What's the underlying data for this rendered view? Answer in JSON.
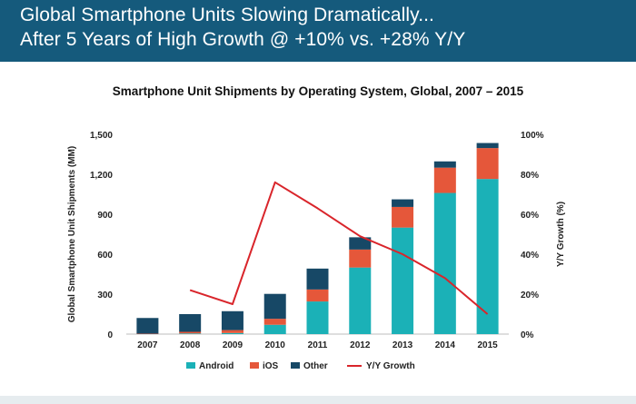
{
  "header": {
    "line1": "Global Smartphone Units Slowing Dramatically...",
    "line2": "After 5 Years of High Growth @ +10% vs. +28% Y/Y",
    "background": "#155a7c"
  },
  "chart_data": {
    "type": "bar",
    "stacked": true,
    "title": "Smartphone Unit Shipments by Operating System, Global, 2007 – 2015",
    "xlabel": "",
    "ylabel": "Global Smartphone Unit Shipments (MM)",
    "y2label": "Y/Y Growth (%)",
    "categories": [
      "2007",
      "2008",
      "2009",
      "2010",
      "2011",
      "2012",
      "2013",
      "2014",
      "2015"
    ],
    "ylim": [
      0,
      1500
    ],
    "yticks": [
      0,
      300,
      600,
      900,
      1200,
      1500
    ],
    "ytick_labels": [
      "0",
      "300",
      "600",
      "900",
      "1,200",
      "1,500"
    ],
    "y2lim": [
      0,
      100
    ],
    "y2ticks": [
      0,
      20,
      40,
      60,
      80,
      100
    ],
    "y2tick_labels": [
      "0%",
      "20%",
      "40%",
      "60%",
      "80%",
      "100%"
    ],
    "series": [
      {
        "name": "Android",
        "color": "#1bb1b7",
        "values": [
          0,
          5,
          8,
          70,
          245,
          500,
          800,
          1060,
          1165
        ]
      },
      {
        "name": "iOS",
        "color": "#e5573a",
        "values": [
          3,
          12,
          22,
          45,
          90,
          135,
          155,
          190,
          232
        ]
      },
      {
        "name": "Other",
        "color": "#174866",
        "values": [
          118,
          133,
          142,
          187,
          157,
          92,
          57,
          47,
          38
        ]
      }
    ],
    "line_series": {
      "name": "Y/Y Growth",
      "color": "#d9252b",
      "axis": "secondary",
      "values": [
        null,
        22,
        15,
        76,
        63,
        49,
        40,
        28,
        10
      ]
    },
    "legend": "bottom-center",
    "grid": false
  },
  "footer": {
    "color": "#e6ecef"
  }
}
